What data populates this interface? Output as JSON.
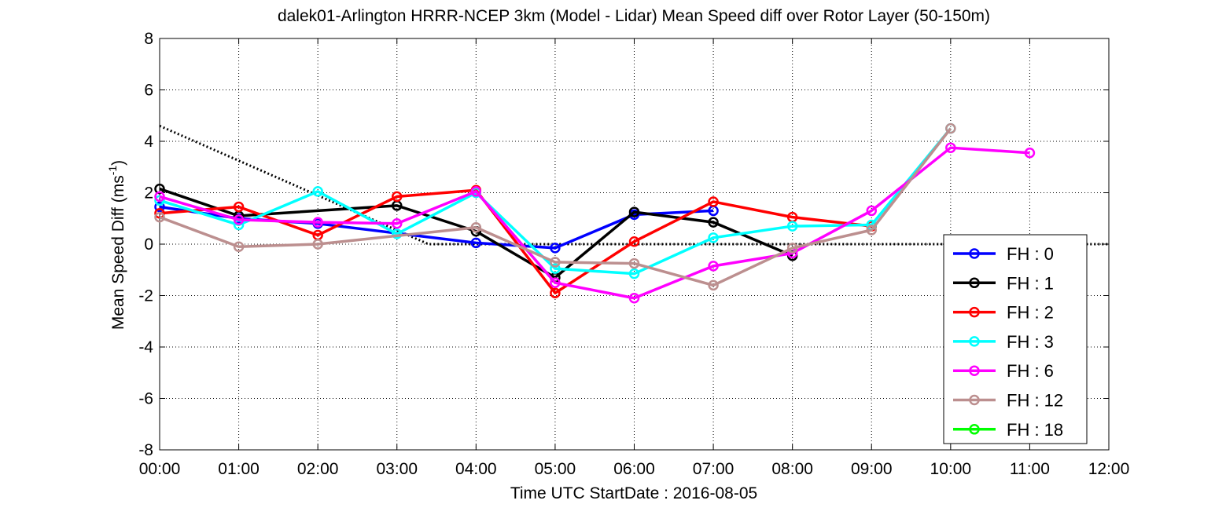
{
  "chart_data": {
    "type": "line",
    "title": "dalek01-Arlington HRRR-NCEP 3km (Model - Lidar) Mean Speed diff over Rotor Layer (50-150m)",
    "xlabel": "Time UTC     StartDate : 2016-08-05",
    "ylabel_main": "Mean Speed Diff (ms",
    "ylabel_sup": "-1",
    "ylabel_close": ")",
    "x_ticks": [
      "00:00",
      "01:00",
      "02:00",
      "03:00",
      "04:00",
      "05:00",
      "06:00",
      "07:00",
      "08:00",
      "09:00",
      "10:00",
      "11:00",
      "12:00"
    ],
    "y_ticks": [
      "8",
      "6",
      "4",
      "2",
      "0",
      "-2",
      "-4",
      "-6",
      "-8"
    ],
    "xlim": [
      0,
      12
    ],
    "ylim": [
      -8,
      8
    ],
    "grid": true,
    "legend_position": "bottom-right",
    "series": [
      {
        "name": "FH : 0",
        "color": "#0000ff",
        "x": [
          0,
          1,
          2,
          4,
          5,
          6,
          7
        ],
        "y": [
          1.45,
          1.0,
          0.8,
          0.05,
          -0.15,
          1.15,
          1.3
        ]
      },
      {
        "name": "FH : 1",
        "color": "#000000",
        "x": [
          0,
          1,
          3,
          4,
          5,
          6,
          7,
          8
        ],
        "y": [
          2.15,
          1.1,
          1.5,
          0.5,
          -1.3,
          1.25,
          0.85,
          -0.45
        ]
      },
      {
        "name": "FH : 2",
        "color": "#ff0000",
        "x": [
          0,
          1,
          2,
          3,
          4,
          5,
          6,
          7,
          8,
          9
        ],
        "y": [
          1.2,
          1.45,
          0.35,
          1.85,
          2.1,
          -1.9,
          0.1,
          1.65,
          1.05,
          0.7
        ]
      },
      {
        "name": "FH : 3",
        "color": "#00ffff",
        "x": [
          0,
          1,
          2,
          3,
          4,
          5,
          6,
          7,
          8,
          9,
          10
        ],
        "y": [
          1.7,
          0.75,
          2.05,
          0.4,
          2.0,
          -0.95,
          -1.15,
          0.25,
          0.7,
          0.75,
          4.5
        ]
      },
      {
        "name": "FH : 6",
        "color": "#ff00ff",
        "x": [
          0,
          1,
          2,
          3,
          4,
          5,
          6,
          7,
          8,
          9,
          10,
          11
        ],
        "y": [
          1.85,
          0.95,
          0.85,
          0.8,
          2.05,
          -1.5,
          -2.1,
          -0.85,
          -0.35,
          1.3,
          3.75,
          3.55
        ]
      },
      {
        "name": "FH : 12",
        "color": "#bc8f8f",
        "x": [
          0,
          1,
          2,
          4,
          5,
          6,
          7,
          8,
          9,
          10
        ],
        "y": [
          1.05,
          -0.1,
          0.0,
          0.65,
          -0.7,
          -0.75,
          -1.6,
          -0.15,
          0.55,
          4.5
        ]
      },
      {
        "name": "FH : 18",
        "color": "#00ff00",
        "x": [],
        "y": []
      }
    ],
    "reference_lines": [
      {
        "style": "dotted",
        "color": "#000000",
        "x": [
          0,
          3.4,
          12
        ],
        "y": [
          4.6,
          0.0,
          0.0
        ]
      }
    ],
    "gap_links": [
      {
        "color": "#0000ff",
        "x": [
          2,
          4
        ],
        "y": [
          0.8,
          0.05
        ]
      },
      {
        "color": "#000000",
        "x": [
          1,
          3
        ],
        "y": [
          1.1,
          1.5
        ]
      },
      {
        "color": "#bc8f8f",
        "x": [
          2,
          4
        ],
        "y": [
          0.0,
          0.65
        ]
      }
    ]
  }
}
